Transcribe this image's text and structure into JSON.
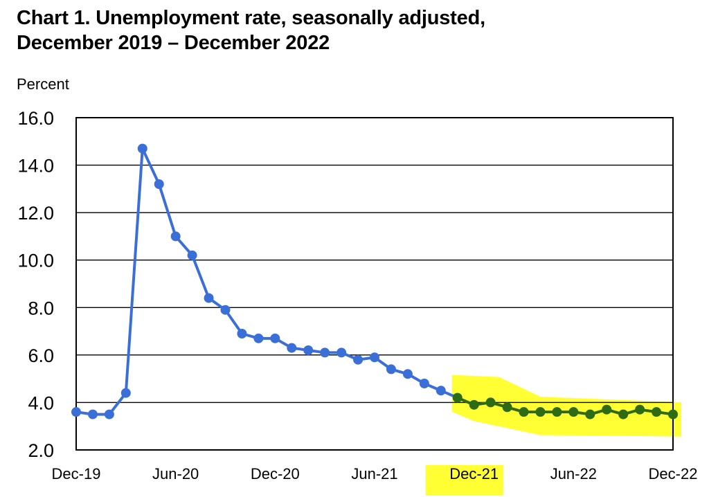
{
  "chart_data": {
    "type": "line",
    "title_line1": "Chart 1. Unemployment rate, seasonally adjusted,",
    "title_line2": "December 2019 – December 2022",
    "ylabel": "Percent",
    "xlabel": "",
    "ylim": [
      2.0,
      16.0
    ],
    "y_ticks": [
      "16.0",
      "14.0",
      "12.0",
      "10.0",
      "8.0",
      "6.0",
      "4.0",
      "2.0"
    ],
    "x_tick_labels": [
      "Dec-19",
      "Jun-20",
      "Dec-20",
      "Jun-21",
      "Dec-21",
      "Jun-22",
      "Dec-22"
    ],
    "grid": true,
    "x": [
      "Dec-19",
      "Jan-20",
      "Feb-20",
      "Mar-20",
      "Apr-20",
      "May-20",
      "Jun-20",
      "Jul-20",
      "Aug-20",
      "Sep-20",
      "Oct-20",
      "Nov-20",
      "Dec-20",
      "Jan-21",
      "Feb-21",
      "Mar-21",
      "Apr-21",
      "May-21",
      "Jun-21",
      "Jul-21",
      "Aug-21",
      "Sep-21",
      "Oct-21",
      "Nov-21",
      "Dec-21",
      "Jan-22",
      "Feb-22",
      "Mar-22",
      "Apr-22",
      "May-22",
      "Jun-22",
      "Jul-22",
      "Aug-22",
      "Sep-22",
      "Oct-22",
      "Nov-22",
      "Dec-22"
    ],
    "values": [
      3.6,
      3.5,
      3.5,
      4.4,
      14.7,
      13.2,
      11.0,
      10.2,
      8.4,
      7.9,
      6.9,
      6.7,
      6.7,
      6.3,
      6.2,
      6.1,
      6.1,
      5.8,
      5.9,
      5.4,
      5.2,
      4.8,
      4.5,
      4.2,
      3.9,
      4.0,
      3.8,
      3.6,
      3.6,
      3.6,
      3.6,
      3.5,
      3.7,
      3.5,
      3.7,
      3.6,
      3.5
    ],
    "highlight_start_index": 23,
    "highlighted_tick": "Dec-21",
    "colors": {
      "line": "#3b6fd8",
      "highlight_line": "#2e6b14",
      "highlighter": "#ffff33"
    }
  }
}
